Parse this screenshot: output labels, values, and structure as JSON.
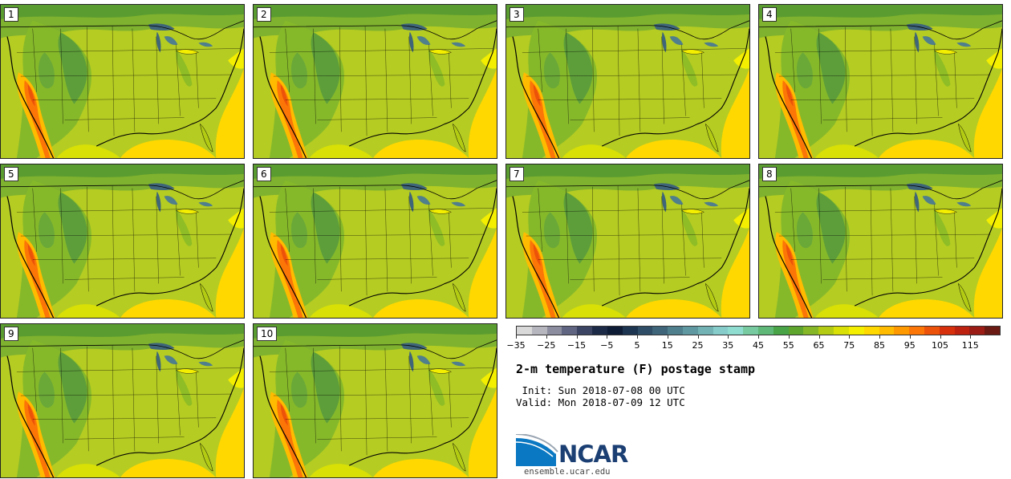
{
  "panels": [
    {
      "label": "1"
    },
    {
      "label": "2"
    },
    {
      "label": "3"
    },
    {
      "label": "4"
    },
    {
      "label": "5"
    },
    {
      "label": "6"
    },
    {
      "label": "7"
    },
    {
      "label": "8"
    },
    {
      "label": "9"
    },
    {
      "label": "10"
    }
  ],
  "colorbar": {
    "tick_labels": [
      "−35",
      "−25",
      "−15",
      "−5",
      "5",
      "15",
      "25",
      "35",
      "45",
      "55",
      "65",
      "75",
      "85",
      "95",
      "105",
      "115"
    ],
    "colors": [
      "#d9d9d9",
      "#b6b6bf",
      "#8c8ea0",
      "#606681",
      "#3b4463",
      "#1d2a47",
      "#0f1c36",
      "#1d3550",
      "#2f4d66",
      "#3e6579",
      "#4f7e8c",
      "#5f98a0",
      "#72b2b5",
      "#86cccb",
      "#8fdcd0",
      "#77c9a0",
      "#5fb878",
      "#48a446",
      "#5ea52e",
      "#86b726",
      "#b3cc13",
      "#d8e005",
      "#f4ee00",
      "#ffd800",
      "#ffbb00",
      "#ff9900",
      "#fb7606",
      "#ec5209",
      "#d6300c",
      "#bd2211",
      "#9b1c14",
      "#6a1a12"
    ]
  },
  "title": "2-m temperature (F) postage stamp",
  "init": " Init: Sun 2018-07-08 00 UTC",
  "valid": "Valid: Mon 2018-07-09 12 UTC",
  "logo_text": "NCAR",
  "website": "ensemble.ucar.edu"
}
